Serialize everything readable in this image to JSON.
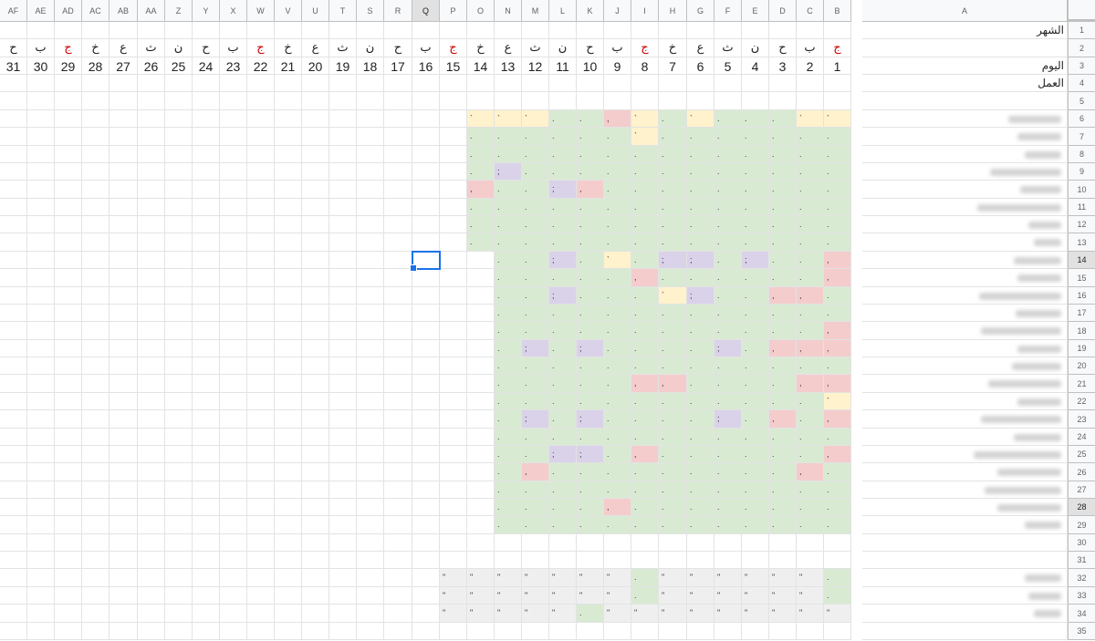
{
  "columns": [
    "AF",
    "AE",
    "AD",
    "AC",
    "AB",
    "AA",
    "Z",
    "Y",
    "X",
    "W",
    "V",
    "U",
    "T",
    "S",
    "R",
    "Q",
    "P",
    "O",
    "N",
    "M",
    "L",
    "K",
    "J",
    "I",
    "H",
    "G",
    "F",
    "E",
    "D",
    "C",
    "B",
    "A"
  ],
  "rows": 35,
  "selected_column": "Q",
  "selected_rows": [
    14,
    28
  ],
  "labels": {
    "month": "الشهر",
    "day": "اليوم",
    "work": "العمل"
  },
  "weekdays": [
    "ج",
    "ب",
    "ح",
    "ن",
    "ث",
    "ع",
    "خ",
    "ج",
    "ب",
    "ح",
    "ن",
    "ث",
    "ع",
    "خ",
    "ج",
    "ب",
    "ح",
    "ن",
    "ث",
    "ع",
    "خ",
    "ج",
    "ب",
    "ح",
    "ن",
    "ث",
    "ع",
    "خ",
    "ج",
    "ب",
    "ح"
  ],
  "weekday_red": [
    1,
    8,
    15,
    22,
    29
  ],
  "task_rows": 24,
  "summary_rows": 3,
  "marks": {
    "tick": "`",
    "dot": ".",
    "comma": ",",
    "semi": ";",
    "quote": "\""
  },
  "colors": {
    "green": "#d9ead3",
    "yellow": "#fff2cc",
    "pink": "#f4cccc",
    "lavender": "#d9d2e9",
    "grey": "#efefef",
    "selection": "#1a73e8",
    "weekend_text": "#cc0000"
  },
  "highlights": {
    "6": {
      "1": "yellow",
      "2": "yellow",
      "6": "yellow",
      "8": "yellow",
      "9": "pink",
      "12": "yellow",
      "13": "yellow",
      "14": "yellow"
    },
    "7": {
      "8": "yellow"
    },
    "9": {
      "13": "lavender"
    },
    "10": {
      "10": "pink",
      "11": "lavender",
      "14": "pink"
    },
    "14": {
      "1": "pink",
      "4": "lavender",
      "6": "lavender",
      "7": "lavender",
      "9": "yellow",
      "11": "lavender"
    },
    "15": {
      "1": "pink",
      "8": "pink"
    },
    "16": {
      "2": "pink",
      "3": "pink",
      "6": "lavender",
      "7": "yellow",
      "11": "lavender"
    },
    "18": {
      "1": "pink"
    },
    "19": {
      "1": "pink",
      "2": "pink",
      "3": "pink",
      "5": "lavender",
      "10": "lavender",
      "12": "lavender"
    },
    "21": {
      "1": "pink",
      "2": "pink",
      "7": "pink",
      "8": "pink"
    },
    "22": {
      "1": "yellow"
    },
    "23": {
      "1": "pink",
      "3": "pink",
      "5": "lavender",
      "10": "lavender",
      "12": "lavender"
    },
    "25": {
      "1": "pink",
      "8": "pink",
      "10": "lavender",
      "11": "lavender"
    },
    "26": {
      "2": "pink",
      "12": "pink"
    },
    "28": {
      "9": "pink"
    }
  }
}
